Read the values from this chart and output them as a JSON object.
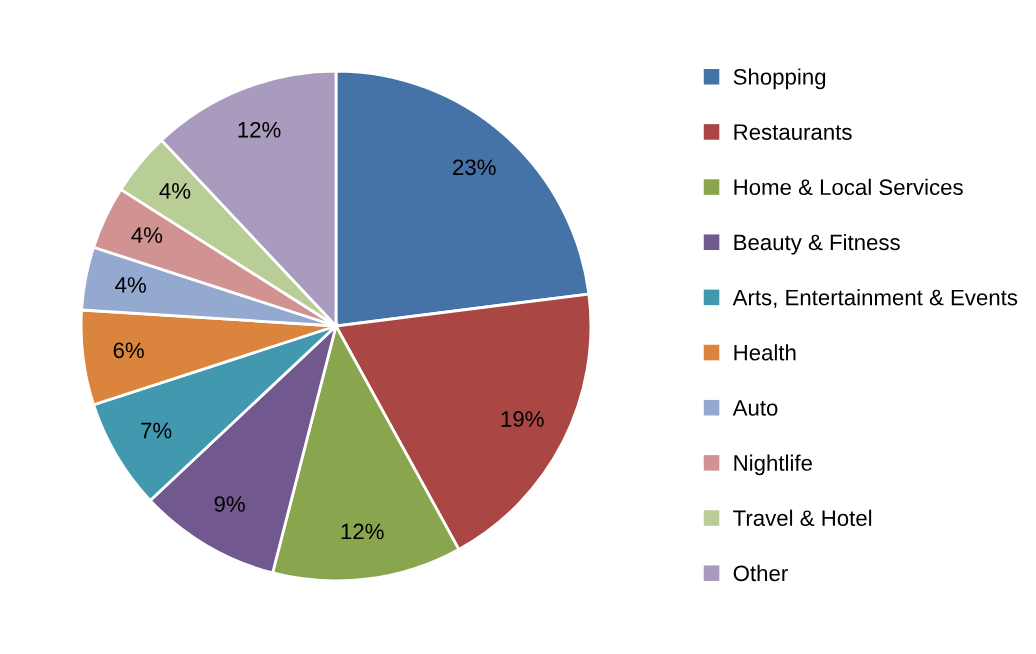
{
  "chart_data": {
    "type": "pie",
    "categories": [
      "Shopping",
      "Restaurants",
      "Home & Local Services",
      "Beauty & Fitness",
      "Arts, Entertainment & Events",
      "Health",
      "Auto",
      "Nightlife",
      "Travel & Hotel",
      "Other"
    ],
    "values": [
      23,
      19,
      12,
      9,
      7,
      6,
      4,
      4,
      4,
      12
    ],
    "colors": [
      "#4572a7",
      "#aa4643",
      "#89a54e",
      "#71588f",
      "#4198af",
      "#db843d",
      "#93a9cf",
      "#d19392",
      "#b9cd96",
      "#a99bbd"
    ],
    "value_labels": [
      "23%",
      "19%",
      "12%",
      "9%",
      "7%",
      "6%",
      "4%",
      "4%",
      "4%",
      "12%"
    ],
    "legend": "right"
  }
}
